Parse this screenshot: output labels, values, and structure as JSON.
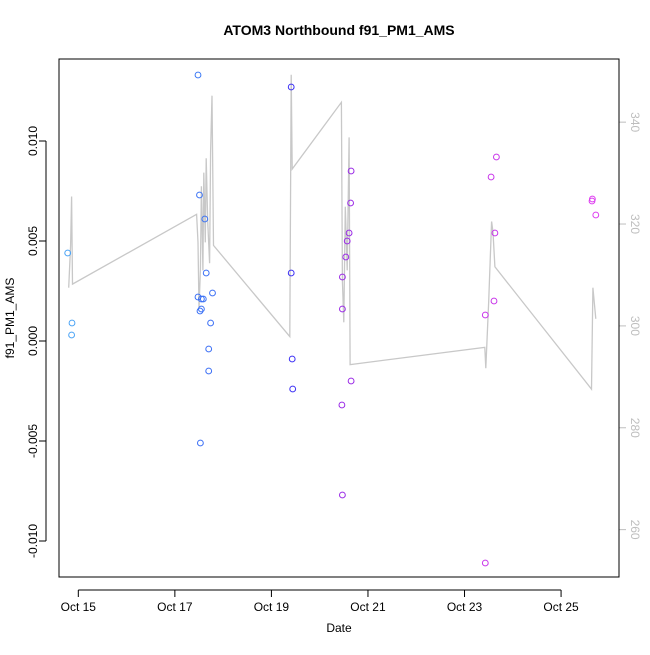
{
  "chart_data": {
    "type": "scatter",
    "title": "ATOM3 Northbound f91_PM1_AMS",
    "xlabel": "Date",
    "ylabel": "f91_PM1_AMS",
    "xlim": [
      14.6,
      26.2
    ],
    "ylim": [
      -0.0118,
      0.0141
    ],
    "y2lim": [
      250.7,
      352.4
    ],
    "grid": false,
    "x_ticks": [
      {
        "value": 15,
        "label": "Oct 15"
      },
      {
        "value": 17,
        "label": "Oct 17"
      },
      {
        "value": 19,
        "label": "Oct 19"
      },
      {
        "value": 21,
        "label": "Oct 21"
      },
      {
        "value": 23,
        "label": "Oct 23"
      },
      {
        "value": 25,
        "label": "Oct 25"
      }
    ],
    "y_ticks": [
      {
        "value": -0.01,
        "label": "-0.010"
      },
      {
        "value": -0.005,
        "label": "-0.005"
      },
      {
        "value": 0.0,
        "label": "0.000"
      },
      {
        "value": 0.005,
        "label": "0.005"
      },
      {
        "value": 0.01,
        "label": "0.010"
      }
    ],
    "y2_ticks": [
      {
        "value": 260,
        "label": "260"
      },
      {
        "value": 280,
        "label": "280"
      },
      {
        "value": 300,
        "label": "300"
      },
      {
        "value": 320,
        "label": "320"
      },
      {
        "value": 340,
        "label": "340"
      }
    ],
    "colors": {
      "axis": "#000000",
      "secondary_axis": "#bebebe",
      "line": "#c8c8c8",
      "points_start": "#3fa0ff",
      "points_mid": "#3a2aff",
      "points_end": "#d63aff"
    },
    "series": [
      {
        "name": "f91_PM1_AMS",
        "kind": "points",
        "points": [
          {
            "x": 14.78,
            "y": 0.0044,
            "color": "#4aa3f5"
          },
          {
            "x": 14.87,
            "y": 0.0009,
            "color": "#4aa3f5"
          },
          {
            "x": 14.86,
            "y": 0.0003,
            "color": "#4aa3f5"
          },
          {
            "x": 17.48,
            "y": 0.0133,
            "color": "#3a78f5"
          },
          {
            "x": 17.51,
            "y": 0.0073,
            "color": "#3a72f5"
          },
          {
            "x": 17.62,
            "y": 0.0061,
            "color": "#3a72f5"
          },
          {
            "x": 17.65,
            "y": 0.0034,
            "color": "#3a70f5"
          },
          {
            "x": 17.48,
            "y": 0.0022,
            "color": "#3a70f5"
          },
          {
            "x": 17.55,
            "y": 0.0021,
            "color": "#3a70f5"
          },
          {
            "x": 17.59,
            "y": 0.0021,
            "color": "#3a70f5"
          },
          {
            "x": 17.52,
            "y": 0.0015,
            "color": "#3a70f5"
          },
          {
            "x": 17.55,
            "y": 0.0016,
            "color": "#3a70f5"
          },
          {
            "x": 17.78,
            "y": 0.0024,
            "color": "#3a6ef5"
          },
          {
            "x": 17.74,
            "y": 0.0009,
            "color": "#3a6ef5"
          },
          {
            "x": 17.7,
            "y": -0.0004,
            "color": "#3a6ef5"
          },
          {
            "x": 17.7,
            "y": -0.0015,
            "color": "#3a6ef5"
          },
          {
            "x": 17.53,
            "y": -0.0051,
            "color": "#3a6ef5"
          },
          {
            "x": 19.41,
            "y": 0.0127,
            "color": "#3a2ef5"
          },
          {
            "x": 19.41,
            "y": 0.0034,
            "color": "#3a2ef5"
          },
          {
            "x": 19.43,
            "y": -0.0009,
            "color": "#3a2ef5"
          },
          {
            "x": 19.44,
            "y": -0.0024,
            "color": "#3a2ef5"
          },
          {
            "x": 20.65,
            "y": 0.0085,
            "color": "#9a2ae6"
          },
          {
            "x": 20.64,
            "y": 0.0069,
            "color": "#9a2ae6"
          },
          {
            "x": 20.61,
            "y": 0.0054,
            "color": "#9a2ae6"
          },
          {
            "x": 20.57,
            "y": 0.005,
            "color": "#9a2ae6"
          },
          {
            "x": 20.54,
            "y": 0.0042,
            "color": "#9a2ae6"
          },
          {
            "x": 20.47,
            "y": 0.0032,
            "color": "#9a2ae6"
          },
          {
            "x": 20.47,
            "y": 0.0016,
            "color": "#9a2ae6"
          },
          {
            "x": 20.65,
            "y": -0.002,
            "color": "#9a2ae6"
          },
          {
            "x": 20.46,
            "y": -0.0032,
            "color": "#9a2ae6"
          },
          {
            "x": 20.47,
            "y": -0.0077,
            "color": "#9a2ae6"
          },
          {
            "x": 23.66,
            "y": 0.0092,
            "color": "#c834ea"
          },
          {
            "x": 23.55,
            "y": 0.0082,
            "color": "#c834ea"
          },
          {
            "x": 23.63,
            "y": 0.0054,
            "color": "#c834ea"
          },
          {
            "x": 23.61,
            "y": 0.002,
            "color": "#c834ea"
          },
          {
            "x": 23.43,
            "y": 0.0013,
            "color": "#c834ea"
          },
          {
            "x": 23.43,
            "y": -0.0111,
            "color": "#c834ea"
          },
          {
            "x": 25.65,
            "y": 0.0071,
            "color": "#dd3cf0"
          },
          {
            "x": 25.64,
            "y": 0.007,
            "color": "#dd3cf0"
          },
          {
            "x": 25.72,
            "y": 0.0063,
            "color": "#dd3cf0"
          }
        ]
      },
      {
        "name": "secondary-axis track",
        "kind": "line",
        "axis": "right",
        "points": [
          {
            "x": 14.8,
            "y": 307.5
          },
          {
            "x": 14.84,
            "y": 315.8
          },
          {
            "x": 14.86,
            "y": 325.4
          },
          {
            "x": 14.88,
            "y": 308.2
          },
          {
            "x": 17.45,
            "y": 321.9
          },
          {
            "x": 17.48,
            "y": 316.4
          },
          {
            "x": 17.5,
            "y": 303.4
          },
          {
            "x": 17.53,
            "y": 310.9
          },
          {
            "x": 17.55,
            "y": 327.4
          },
          {
            "x": 17.58,
            "y": 310.9
          },
          {
            "x": 17.6,
            "y": 330.1
          },
          {
            "x": 17.63,
            "y": 316.4
          },
          {
            "x": 17.65,
            "y": 332.9
          },
          {
            "x": 17.68,
            "y": 320.5
          },
          {
            "x": 17.72,
            "y": 312.3
          },
          {
            "x": 17.74,
            "y": 334.3
          },
          {
            "x": 17.77,
            "y": 345.2
          },
          {
            "x": 17.8,
            "y": 315.8
          },
          {
            "x": 19.38,
            "y": 297.9
          },
          {
            "x": 19.41,
            "y": 349.3
          },
          {
            "x": 19.43,
            "y": 330.8
          },
          {
            "x": 20.45,
            "y": 343.9
          },
          {
            "x": 20.47,
            "y": 308.9
          },
          {
            "x": 20.5,
            "y": 300.7
          },
          {
            "x": 20.53,
            "y": 323.4
          },
          {
            "x": 20.57,
            "y": 310.9
          },
          {
            "x": 20.61,
            "y": 337.0
          },
          {
            "x": 20.63,
            "y": 292.4
          },
          {
            "x": 23.42,
            "y": 295.8
          },
          {
            "x": 23.44,
            "y": 291.7
          },
          {
            "x": 23.5,
            "y": 304.8
          },
          {
            "x": 23.56,
            "y": 320.5
          },
          {
            "x": 23.59,
            "y": 318.4
          },
          {
            "x": 23.63,
            "y": 311.6
          },
          {
            "x": 25.63,
            "y": 287.6
          },
          {
            "x": 25.66,
            "y": 307.5
          },
          {
            "x": 25.72,
            "y": 301.4
          }
        ]
      }
    ]
  }
}
